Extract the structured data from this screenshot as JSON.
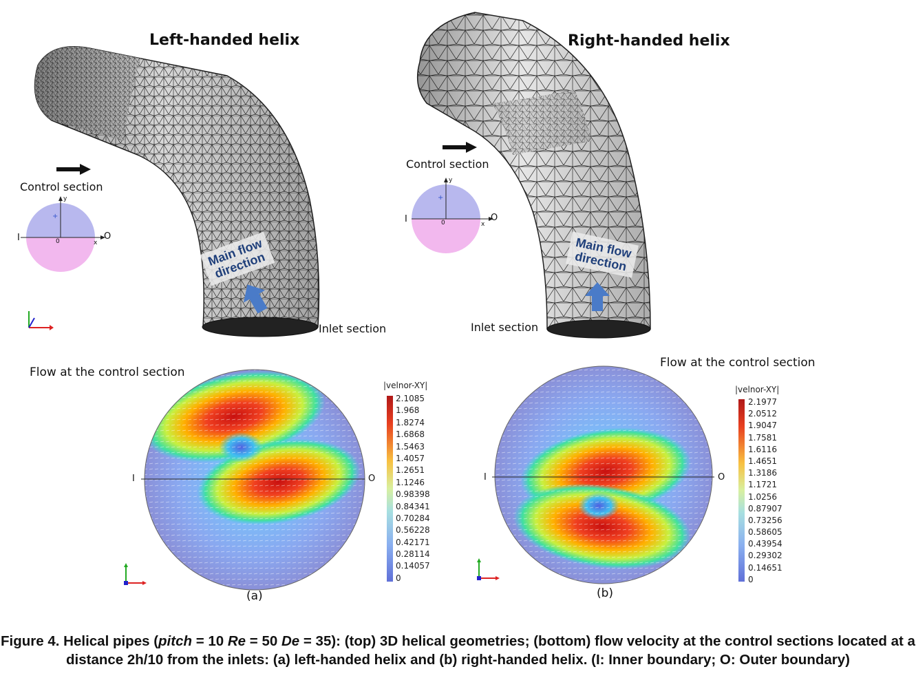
{
  "titles": {
    "left": "Left-handed helix",
    "right": "Right-handed helix"
  },
  "labels": {
    "control_section": "Control section",
    "inlet_section": "Inlet section",
    "flow_control_left": "Flow at the control section",
    "flow_control_right": "Flow at the control section",
    "main_flow_line1": "Main flow",
    "main_flow_line2": "direction",
    "sub_a": "(a)",
    "sub_b": "(b)",
    "inner": "I",
    "outer": "O",
    "axis_x": "x",
    "axis_y": "y",
    "origin": "0"
  },
  "colorbars": {
    "left": {
      "title": "|velnor-XY|",
      "ticks": [
        "2.1085",
        "1.968",
        "1.8274",
        "1.6868",
        "1.5463",
        "1.4057",
        "1.2651",
        "1.1246",
        "0.98398",
        "0.84341",
        "0.70284",
        "0.56228",
        "0.42171",
        "0.28114",
        "0.14057",
        "0"
      ]
    },
    "right": {
      "title": "|velnor-XY|",
      "ticks": [
        "2.1977",
        "2.0512",
        "1.9047",
        "1.7581",
        "1.6116",
        "1.4651",
        "1.3186",
        "1.1721",
        "1.0256",
        "0.87907",
        "0.73256",
        "0.58605",
        "0.43954",
        "0.29302",
        "0.14651",
        "0"
      ]
    }
  },
  "caption": {
    "figure_label": "Figure 4.",
    "part1": " Helical pipes (",
    "pitch": "pitch",
    "part2": " = 10 ",
    "re": "Re",
    "part3": " = 50 ",
    "de": "De",
    "part4": " = 35): (top) 3D helical geometries; (bottom) flow velocity at the control sections located at a distance 2h/10 from the inlets: (a) left-handed helix and (b) right-handed helix. (I: Inner boundary; O: Outer boundary)"
  },
  "colors": {
    "inner_half": "#b8b8ee",
    "outer_half": "#f2b8ee",
    "arrow_blue": "#4a7bc8",
    "mesh_dark": "#3a3a3a"
  }
}
